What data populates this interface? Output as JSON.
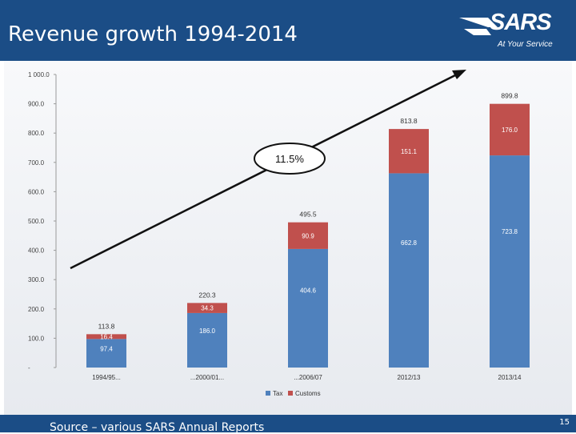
{
  "header": {
    "title": "Revenue growth 1994-2014"
  },
  "logo": {
    "text": "SARS",
    "tagline": "At Your Service"
  },
  "footer": {
    "source": "Source – various SARS Annual Reports",
    "page_number": "15"
  },
  "colors": {
    "header": "#1b4d86",
    "tax": "#4f81bd",
    "customs": "#c0504d"
  },
  "chart_data": {
    "type": "bar",
    "stacked": true,
    "categories": [
      "1994/95...",
      "...2000/01...",
      "...2006/07",
      "2012/13",
      "2013/14"
    ],
    "series": [
      {
        "name": "Tax",
        "values": [
          97.4,
          186.0,
          404.6,
          662.8,
          723.8
        ],
        "labels": [
          "97.4",
          "186.0",
          "404.6",
          "662.8",
          "723.8"
        ]
      },
      {
        "name": "Customs",
        "values": [
          16.4,
          34.3,
          90.9,
          151.1,
          176.0
        ],
        "labels": [
          "16.4",
          "34.3",
          "90.9",
          "151.1",
          "176.0"
        ]
      }
    ],
    "totals": [
      "113.8",
      "220.3",
      "495.5",
      "813.8",
      "899.8"
    ],
    "yticks": [
      "1 000.0",
      "900.0",
      "800.0",
      "700.0",
      "600.0",
      "500.0",
      "400.0",
      "300.0",
      "200.0",
      "100.0",
      "-"
    ],
    "ylim": [
      0,
      1000
    ],
    "annotation": "11.5%",
    "legend_position": "bottom"
  }
}
